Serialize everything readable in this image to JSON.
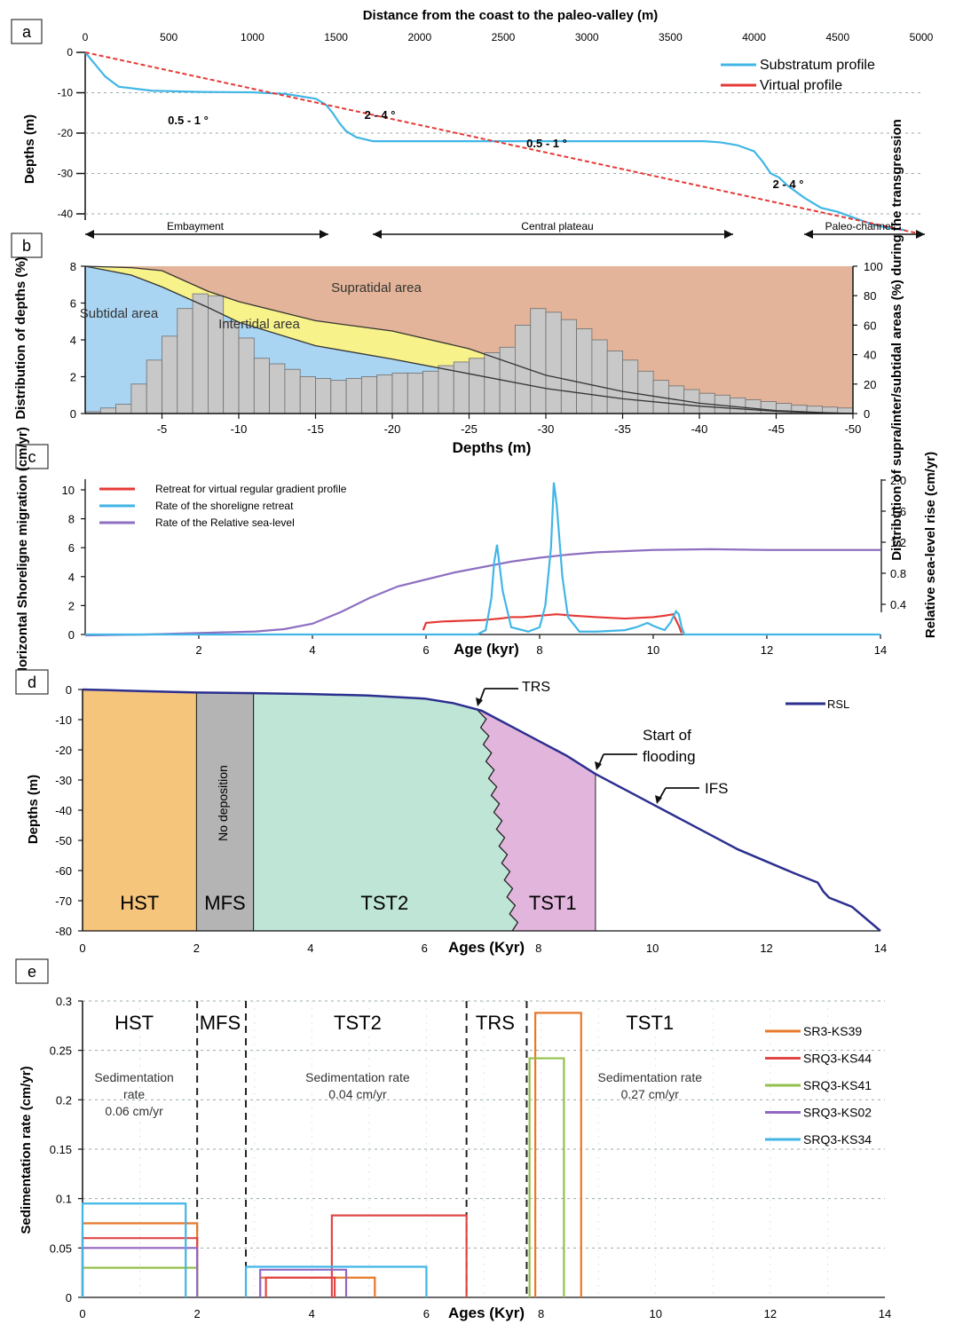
{
  "chart_data": [
    {
      "panel_label": "a",
      "type": "line",
      "title": "Distance from the coast to the paleo-valley (m)",
      "ylabel": "Depths (m)",
      "xlim": [
        0,
        5000
      ],
      "ylim": [
        -45,
        0
      ],
      "x_ticks": [
        "0",
        "500",
        "1000",
        "1500",
        "2000",
        "2500",
        "3000",
        "3500",
        "4000",
        "4500",
        "5000"
      ],
      "y_ticks": [
        "0",
        "-10",
        "-20",
        "-30",
        "-40"
      ],
      "grid": "horizontal dashed",
      "legend_position": "top-right",
      "series": [
        {
          "name": "Substratum profile",
          "color": "#41b6e6",
          "x": [
            0,
            60,
            120,
            200,
            400,
            700,
            1000,
            1200,
            1380,
            1440,
            1480,
            1520,
            1560,
            1620,
            1680,
            1720,
            2000,
            2500,
            3000,
            3500,
            3700,
            3800,
            3900,
            4000,
            4050,
            4100,
            4150,
            4200,
            4300,
            4400,
            4500,
            4600,
            4700,
            4800,
            4900
          ],
          "y": [
            0,
            -3,
            -6,
            -8.5,
            -9.5,
            -9.8,
            -9.9,
            -10.3,
            -11.5,
            -13,
            -15,
            -17.5,
            -19.5,
            -21,
            -21.6,
            -22,
            -22,
            -22,
            -22,
            -22,
            -22,
            -22.3,
            -23,
            -24.5,
            -27,
            -30,
            -31,
            -33,
            -36,
            -38.5,
            -39.5,
            -41,
            -42.5,
            -43.5,
            -44
          ]
        },
        {
          "name": "Virtual profile",
          "color": "#e53935",
          "x": [
            0,
            5000
          ],
          "y": [
            0,
            -45
          ]
        }
      ],
      "annotations": [
        "0.5 - 1 °",
        "2 - 4 °",
        "0.5 - 1 °",
        "2 - 4 °"
      ],
      "zones": [
        "Embayment",
        "Central plateau",
        "Paleo-channel"
      ]
    },
    {
      "panel_label": "b",
      "type": "bar",
      "xlabel": "Depths (m)",
      "ylabel": "Distribution of depths (%)",
      "y2label": "Distribution of supra/inter/subtidal areas (%) during the transgression",
      "xlim": [
        0,
        -50
      ],
      "ylim": [
        0,
        8
      ],
      "y2lim": [
        0,
        100
      ],
      "x_ticks": [
        "-5",
        "-10",
        "-15",
        "-20",
        "-25",
        "-30",
        "-35",
        "-40",
        "-45",
        "-50"
      ],
      "y_ticks": [
        "0",
        "2",
        "4",
        "6",
        "8"
      ],
      "y2_ticks": [
        "0",
        "20",
        "40",
        "60",
        "80",
        "100"
      ],
      "bar_width_m": 1,
      "bar_depth_start_m": 0,
      "values": [
        0.1,
        0.3,
        0.5,
        1.6,
        2.9,
        4.2,
        5.7,
        6.5,
        6.4,
        5.0,
        4.1,
        3.0,
        2.7,
        2.4,
        2.0,
        1.9,
        1.8,
        1.9,
        2.0,
        2.1,
        2.2,
        2.2,
        2.3,
        2.6,
        2.8,
        3.0,
        3.3,
        3.6,
        4.8,
        5.7,
        5.5,
        5.1,
        4.6,
        4.0,
        3.4,
        2.9,
        2.3,
        1.8,
        1.5,
        1.3,
        1.1,
        1.0,
        0.85,
        0.75,
        0.65,
        0.55,
        0.45,
        0.4,
        0.35,
        0.3,
        0.25,
        0.2,
        0.15,
        0.12,
        0.1,
        0.08,
        0.06,
        0.05,
        0.04,
        0.03,
        0.02,
        0.02,
        0.01
      ],
      "series": [
        {
          "name": "Subtidal area",
          "color": "#a9d4f2",
          "depth": [
            0,
            -3,
            -5,
            -8,
            -10,
            -15,
            -20,
            -25,
            -30,
            -35,
            -40,
            -45,
            -48,
            -50
          ],
          "upper_pct": [
            100,
            94,
            86,
            72,
            62,
            46,
            37,
            27,
            17,
            10,
            5,
            1.5,
            0.5,
            0
          ]
        },
        {
          "name": "Intertidal area",
          "color": "#f7f28a",
          "depth": [
            0,
            -3,
            -5,
            -8,
            -10,
            -15,
            -20,
            -25,
            -30,
            -35,
            -40,
            -45,
            -48,
            -50
          ],
          "upper_pct": [
            100,
            99,
            97,
            83,
            76,
            63,
            56,
            44,
            26,
            15,
            7,
            2,
            0.7,
            0
          ]
        },
        {
          "name": "Supratidal area",
          "color": "#e3b499"
        }
      ]
    },
    {
      "panel_label": "c",
      "type": "line",
      "xlabel": "Age (kyr)",
      "ylabel": "Horizontal Shoreligne migration (cm/yr)",
      "y2label": "Relative sea-level rise (cm/yr)",
      "xlim": [
        0,
        14
      ],
      "ylim": [
        0,
        11
      ],
      "y2lim": [
        0,
        2.0
      ],
      "x_ticks": [
        "2",
        "4",
        "6",
        "8",
        "10",
        "12",
        "14"
      ],
      "y_ticks": [
        "0",
        "2",
        "4",
        "6",
        "8",
        "10"
      ],
      "y2_ticks": [
        "0.4",
        "0.8",
        "1.2",
        "1.6",
        "2.0"
      ],
      "legend_position": "top-left",
      "series": [
        {
          "name": "Retreat for virtual regular gradient profile",
          "color": "#e53935",
          "axis": "left",
          "x": [
            5.95,
            6.0,
            6.3,
            7.0,
            7.3,
            7.5,
            7.7,
            8.0,
            8.3,
            8.6,
            9.0,
            9.5,
            10.0,
            10.2,
            10.35,
            10.45,
            10.5
          ],
          "y": [
            0.3,
            0.8,
            0.9,
            1.0,
            1.1,
            1.2,
            1.2,
            1.3,
            1.4,
            1.3,
            1.2,
            1.1,
            1.2,
            1.3,
            1.4,
            0.6,
            0.1
          ]
        },
        {
          "name": "Rate of the shoreligne retreat",
          "color": "#41b6e6",
          "axis": "left",
          "x": [
            0,
            6.9,
            7.05,
            7.15,
            7.2,
            7.25,
            7.35,
            7.5,
            7.8,
            8.0,
            8.1,
            8.2,
            8.25,
            8.3,
            8.4,
            8.5,
            8.7,
            9.0,
            9.5,
            9.7,
            9.9,
            10.0,
            10.2,
            10.3,
            10.4,
            10.45,
            10.5,
            10.55,
            14
          ],
          "y": [
            0,
            0,
            0.3,
            2.5,
            5,
            6.2,
            3,
            0.5,
            0.2,
            0.5,
            2,
            6,
            10.5,
            9,
            4,
            1.2,
            0.2,
            0.2,
            0.3,
            0.5,
            0.8,
            0.6,
            0.3,
            0.8,
            1.6,
            1.4,
            0.5,
            0,
            0
          ]
        },
        {
          "name": "Rate of the Relative sea-level",
          "color": "#8e6fc1",
          "axis": "right",
          "x": [
            0,
            1,
            2,
            3,
            3.5,
            4,
            4.5,
            5,
            5.5,
            6,
            6.5,
            7,
            7.5,
            8,
            8.5,
            9,
            10,
            11,
            12,
            13,
            14
          ],
          "y": [
            0,
            0.01,
            0.03,
            0.05,
            0.08,
            0.15,
            0.3,
            0.48,
            0.63,
            0.72,
            0.81,
            0.88,
            0.95,
            1.0,
            1.04,
            1.07,
            1.1,
            1.11,
            1.1,
            1.1,
            1.1
          ]
        }
      ]
    },
    {
      "panel_label": "d",
      "type": "area",
      "xlabel": "Ages (Kyr)",
      "ylabel": "Depths (m)",
      "xlim": [
        0,
        14
      ],
      "ylim": [
        -80,
        0
      ],
      "x_ticks": [
        "0",
        "2",
        "4",
        "6",
        "8",
        "10",
        "12",
        "14"
      ],
      "y_ticks": [
        "0",
        "-10",
        "-20",
        "-30",
        "-40",
        "-50",
        "-60",
        "-70",
        "-80"
      ],
      "legend_position": "top-right",
      "series": [
        {
          "name": "RSL",
          "color": "#2b2f8f",
          "x": [
            0,
            1,
            2,
            3,
            4,
            5,
            6,
            6.5,
            7,
            7.3,
            7.6,
            8,
            8.5,
            9,
            9.5,
            10,
            10.5,
            11,
            11.5,
            12,
            12.5,
            12.9,
            13,
            13.1,
            13.5,
            14
          ],
          "y": [
            0,
            -0.5,
            -1,
            -1.2,
            -1.5,
            -2,
            -3,
            -4.5,
            -7,
            -10,
            -13,
            -17,
            -22,
            -28,
            -33,
            -38,
            -43,
            -48,
            -53,
            -57,
            -61,
            -64,
            -67,
            -69,
            -72,
            -80
          ]
        }
      ],
      "zones": [
        {
          "name": "HST",
          "from": 0,
          "to": 2,
          "color": "#f6c57c"
        },
        {
          "name": "MFS",
          "from": 2,
          "to": 3,
          "color": "#b4b4b4"
        },
        {
          "name": "TST2",
          "from": 3,
          "to": 7.6,
          "color": "#bfe5d6"
        },
        {
          "name": "TST1",
          "from": 7.6,
          "to": 9,
          "color": "#e2b6dc"
        }
      ],
      "annotations": [
        "No deposition",
        "TRS",
        "Start of flooding",
        "IFS"
      ]
    },
    {
      "panel_label": "e",
      "type": "line",
      "xlabel": "Ages (Kyr)",
      "ylabel": "Sedimentation rate (cm/yr)",
      "xlim": [
        0,
        14
      ],
      "ylim": [
        0,
        0.3
      ],
      "x_ticks": [
        "0",
        "2",
        "4",
        "6",
        "8",
        "10",
        "12",
        "14"
      ],
      "y_ticks": [
        "0",
        "0.05",
        "0.1",
        "0.15",
        "0.2",
        "0.25",
        "0.3"
      ],
      "grid": "horizontal dashed",
      "legend_position": "right",
      "boundaries": [
        2,
        2.85,
        6.7,
        7.75
      ],
      "phases": [
        {
          "name": "HST",
          "note": "Sedimentation rate 0.06 cm/yr",
          "center": 0.9
        },
        {
          "name": "MFS",
          "center": 2.4
        },
        {
          "name": "TST2",
          "note": "Sedimentation rate 0.04 cm/yr",
          "center": 4.8
        },
        {
          "name": "TRS",
          "center": 7.2
        },
        {
          "name": "TST1",
          "note": "Sedimentation rate 0.27 cm/yr",
          "center": 9.9
        }
      ],
      "series": [
        {
          "name": "SR3-KS39",
          "color": "#e8782a",
          "blocks": [
            {
              "from": 0,
              "to": 2,
              "value": 0.075
            },
            {
              "from": 3.1,
              "to": 5.1,
              "value": 0.02
            },
            {
              "from": 7.9,
              "to": 8.7,
              "value": 0.288
            }
          ]
        },
        {
          "name": "SRQ3-KS44",
          "color": "#e04747",
          "blocks": [
            {
              "from": 0,
              "to": 2,
              "value": 0.06
            },
            {
              "from": 3.2,
              "to": 4.4,
              "value": 0.02
            },
            {
              "from": 4.35,
              "to": 6.7,
              "value": 0.083
            }
          ]
        },
        {
          "name": "SRQ3-KS41",
          "color": "#93c04a",
          "blocks": [
            {
              "from": 0,
              "to": 2,
              "value": 0.03
            },
            {
              "from": 7.8,
              "to": 8.4,
              "value": 0.242
            }
          ]
        },
        {
          "name": "SRQ3-KS02",
          "color": "#9267c1",
          "blocks": [
            {
              "from": 0,
              "to": 2,
              "value": 0.05
            },
            {
              "from": 3.1,
              "to": 4.6,
              "value": 0.028
            }
          ]
        },
        {
          "name": "SRQ3-KS34",
          "color": "#41b6e6",
          "blocks": [
            {
              "from": 0,
              "to": 1.8,
              "value": 0.095
            },
            {
              "from": 2.85,
              "to": 6.0,
              "value": 0.031
            }
          ]
        }
      ]
    }
  ]
}
